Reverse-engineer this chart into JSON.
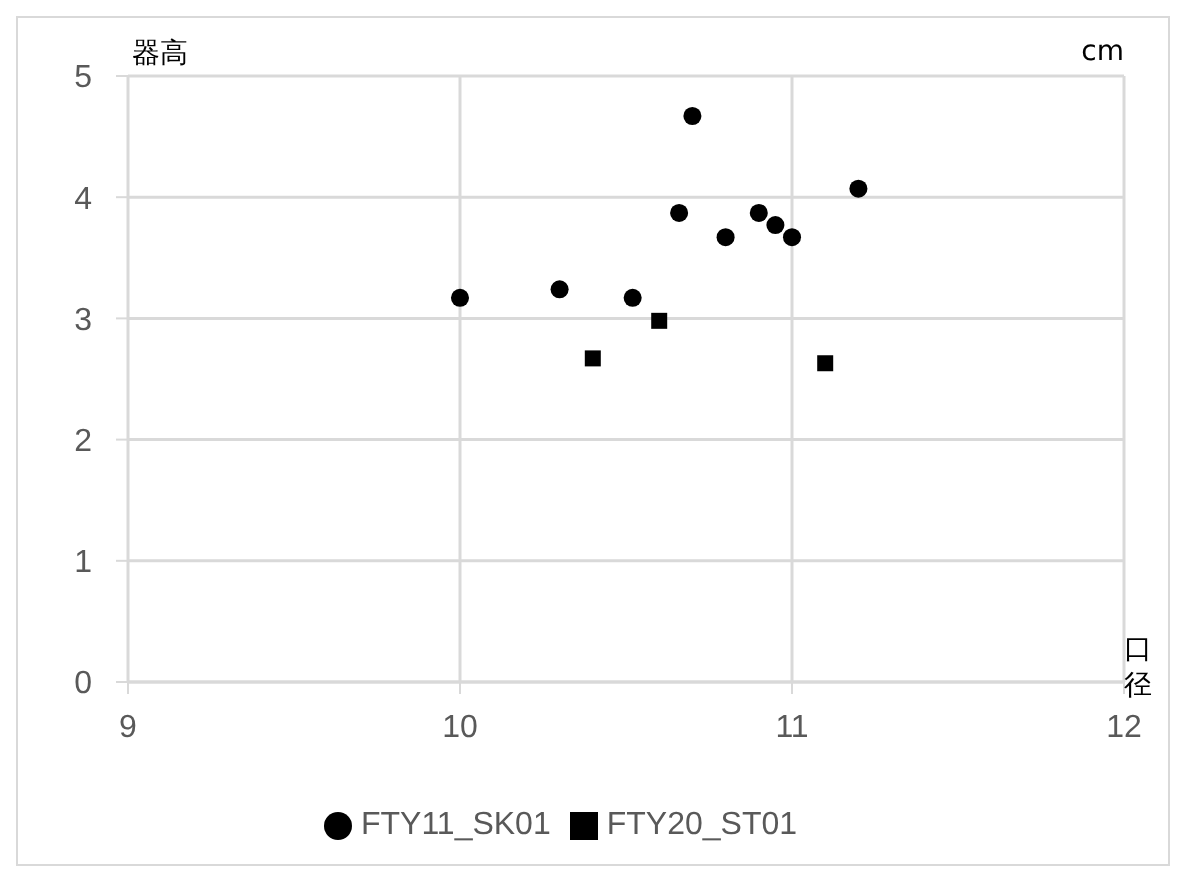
{
  "chart_data": {
    "type": "scatter",
    "xlabel": "口径",
    "ylabel": "器高",
    "annotations": [
      "cm"
    ],
    "xlim": [
      9,
      12
    ],
    "xticks": [
      9,
      10,
      11,
      12
    ],
    "ylim": [
      0,
      5
    ],
    "yticks": [
      0,
      1,
      2,
      3,
      4,
      5
    ],
    "grid": true,
    "legend": "bottom",
    "series": [
      {
        "name": "FTY11_SK01",
        "color": "#000000",
        "marker": "circle",
        "x": [
          10,
          10.3,
          10.52,
          10.66,
          10.7,
          10.8,
          10.9,
          10.95,
          11,
          11.2
        ],
        "values": [
          3.17,
          3.24,
          3.17,
          3.87,
          4.67,
          3.67,
          3.87,
          3.77,
          3.67,
          4.07
        ]
      },
      {
        "name": "FTY20_ST01",
        "color": "#000000",
        "marker": "square",
        "x": [
          10.4,
          10.6,
          11.1
        ],
        "values": [
          2.67,
          2.98,
          2.63
        ]
      }
    ]
  }
}
